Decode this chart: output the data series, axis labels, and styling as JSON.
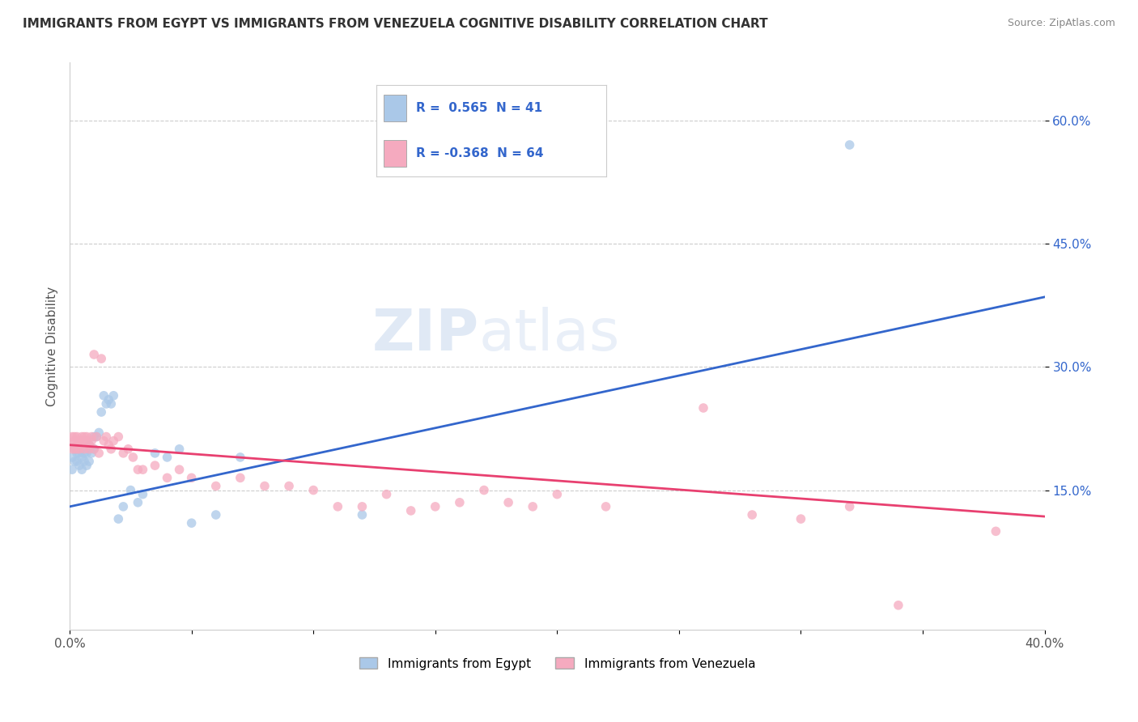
{
  "title": "IMMIGRANTS FROM EGYPT VS IMMIGRANTS FROM VENEZUELA COGNITIVE DISABILITY CORRELATION CHART",
  "source": "Source: ZipAtlas.com",
  "ylabel": "Cognitive Disability",
  "xlim": [
    0.0,
    0.4
  ],
  "ylim": [
    -0.02,
    0.67
  ],
  "yticks": [
    0.15,
    0.3,
    0.45,
    0.6
  ],
  "ytick_labels": [
    "15.0%",
    "30.0%",
    "45.0%",
    "60.0%"
  ],
  "xticks": [
    0.0,
    0.05,
    0.1,
    0.15,
    0.2,
    0.25,
    0.3,
    0.35,
    0.4
  ],
  "xtick_labels": [
    "0.0%",
    "",
    "",
    "",
    "",
    "",
    "",
    "",
    "40.0%"
  ],
  "egypt_R": 0.565,
  "egypt_N": 41,
  "venezuela_R": -0.368,
  "venezuela_N": 64,
  "egypt_color": "#aac8e8",
  "venezuela_color": "#f5aabf",
  "egypt_line_color": "#3366cc",
  "venezuela_line_color": "#e84070",
  "legend_text_color": "#3366cc",
  "egypt_x": [
    0.001,
    0.001,
    0.002,
    0.002,
    0.003,
    0.003,
    0.003,
    0.004,
    0.004,
    0.005,
    0.005,
    0.006,
    0.006,
    0.007,
    0.007,
    0.008,
    0.008,
    0.009,
    0.01,
    0.01,
    0.011,
    0.012,
    0.013,
    0.014,
    0.015,
    0.016,
    0.017,
    0.018,
    0.02,
    0.022,
    0.025,
    0.028,
    0.03,
    0.035,
    0.04,
    0.045,
    0.05,
    0.06,
    0.07,
    0.12,
    0.32
  ],
  "egypt_y": [
    0.19,
    0.175,
    0.2,
    0.185,
    0.195,
    0.185,
    0.2,
    0.18,
    0.195,
    0.175,
    0.19,
    0.195,
    0.185,
    0.18,
    0.195,
    0.185,
    0.205,
    0.195,
    0.2,
    0.215,
    0.215,
    0.22,
    0.245,
    0.265,
    0.255,
    0.26,
    0.255,
    0.265,
    0.115,
    0.13,
    0.15,
    0.135,
    0.145,
    0.195,
    0.19,
    0.2,
    0.11,
    0.12,
    0.19,
    0.12,
    0.57
  ],
  "venezuela_x": [
    0.001,
    0.001,
    0.001,
    0.002,
    0.002,
    0.002,
    0.003,
    0.003,
    0.003,
    0.004,
    0.004,
    0.005,
    0.005,
    0.005,
    0.006,
    0.006,
    0.007,
    0.007,
    0.008,
    0.008,
    0.009,
    0.009,
    0.01,
    0.01,
    0.011,
    0.012,
    0.013,
    0.014,
    0.015,
    0.016,
    0.017,
    0.018,
    0.02,
    0.022,
    0.024,
    0.026,
    0.028,
    0.03,
    0.035,
    0.04,
    0.045,
    0.05,
    0.06,
    0.07,
    0.08,
    0.09,
    0.1,
    0.11,
    0.12,
    0.13,
    0.14,
    0.15,
    0.16,
    0.17,
    0.18,
    0.19,
    0.2,
    0.22,
    0.26,
    0.28,
    0.3,
    0.32,
    0.34,
    0.38
  ],
  "venezuela_y": [
    0.205,
    0.215,
    0.2,
    0.21,
    0.2,
    0.215,
    0.205,
    0.215,
    0.2,
    0.21,
    0.2,
    0.215,
    0.205,
    0.21,
    0.215,
    0.2,
    0.21,
    0.215,
    0.205,
    0.2,
    0.21,
    0.215,
    0.315,
    0.2,
    0.215,
    0.195,
    0.31,
    0.21,
    0.215,
    0.205,
    0.2,
    0.21,
    0.215,
    0.195,
    0.2,
    0.19,
    0.175,
    0.175,
    0.18,
    0.165,
    0.175,
    0.165,
    0.155,
    0.165,
    0.155,
    0.155,
    0.15,
    0.13,
    0.13,
    0.145,
    0.125,
    0.13,
    0.135,
    0.15,
    0.135,
    0.13,
    0.145,
    0.13,
    0.25,
    0.12,
    0.115,
    0.13,
    0.01,
    0.1
  ],
  "blue_line_y0": 0.13,
  "blue_line_y1": 0.385,
  "pink_line_y0": 0.205,
  "pink_line_y1": 0.118
}
